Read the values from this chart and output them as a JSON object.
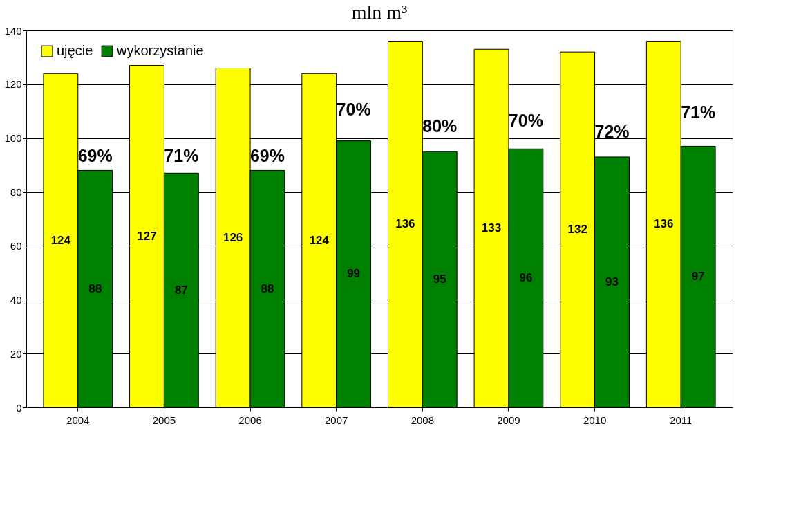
{
  "chart_data": {
    "type": "bar",
    "title": "mln m³",
    "categories": [
      "2004",
      "2005",
      "2006",
      "2007",
      "2008",
      "2009",
      "2010",
      "2011"
    ],
    "series": [
      {
        "name": "ujęcie",
        "color": "#ffff00",
        "values": [
          124,
          127,
          126,
          124,
          136,
          133,
          132,
          136
        ]
      },
      {
        "name": "wykorzystanie",
        "color": "#008000",
        "values": [
          88,
          87,
          88,
          99,
          95,
          96,
          93,
          97
        ]
      }
    ],
    "ylim": [
      0,
      140
    ],
    "yticks": [
      0,
      20,
      40,
      60,
      80,
      100,
      120,
      140
    ],
    "grid": "y",
    "legend": "top left",
    "data_labels": true,
    "annotations": [
      {
        "text": "69%",
        "x": "2004",
        "y": 90
      },
      {
        "text": "71%",
        "x": "2005",
        "y": 90
      },
      {
        "text": "69%",
        "x": "2006",
        "y": 90
      },
      {
        "text": "70%",
        "x": "2007",
        "y": 107
      },
      {
        "text": "80%",
        "x": "2008",
        "y": 101
      },
      {
        "text": "70%",
        "x": "2009",
        "y": 103
      },
      {
        "text": "72%",
        "x": "2010",
        "y": 99
      },
      {
        "text": "71%",
        "x": "2011",
        "y": 106
      }
    ]
  }
}
